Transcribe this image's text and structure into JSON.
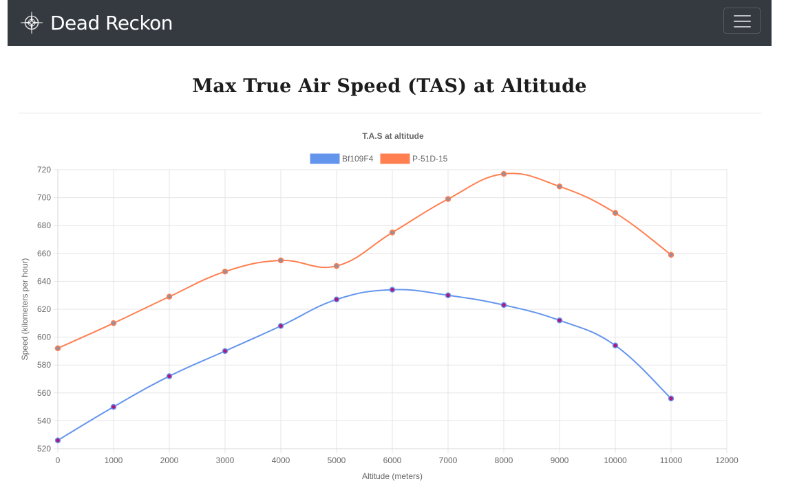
{
  "navbar": {
    "brand_name": "Dead Reckon",
    "brand_icon": "compass-icon",
    "menu_icon": "hamburger-menu-icon",
    "background": "#343a40"
  },
  "page": {
    "title": "Max True Air Speed (TAS) at Altitude"
  },
  "chart_data": {
    "type": "line",
    "title": "T.A.S at altitude",
    "xlabel": "Altitude (meters)",
    "ylabel": "Speed (kilometers per hour)",
    "xlim": [
      0,
      12000
    ],
    "ylim": [
      520,
      720
    ],
    "x_ticks": [
      0,
      1000,
      2000,
      3000,
      4000,
      5000,
      6000,
      7000,
      8000,
      9000,
      10000,
      11000,
      12000
    ],
    "y_ticks": [
      520,
      540,
      560,
      580,
      600,
      620,
      640,
      660,
      680,
      700,
      720
    ],
    "grid": true,
    "legend_position": "top",
    "x": [
      0,
      1000,
      2000,
      3000,
      4000,
      5000,
      6000,
      7000,
      8000,
      9000,
      10000,
      11000
    ],
    "series": [
      {
        "name": "Bf109F4",
        "color": "#6495ed",
        "point_color": "#b0177d",
        "values": [
          526,
          550,
          572,
          590,
          608,
          627,
          634,
          630,
          623,
          612,
          594,
          556
        ]
      },
      {
        "name": "P-51D-15",
        "color": "#ff7f50",
        "point_color": "#9a8e9a",
        "values": [
          592,
          610,
          629,
          647,
          655,
          651,
          675,
          699,
          717,
          708,
          689,
          659
        ]
      }
    ]
  }
}
